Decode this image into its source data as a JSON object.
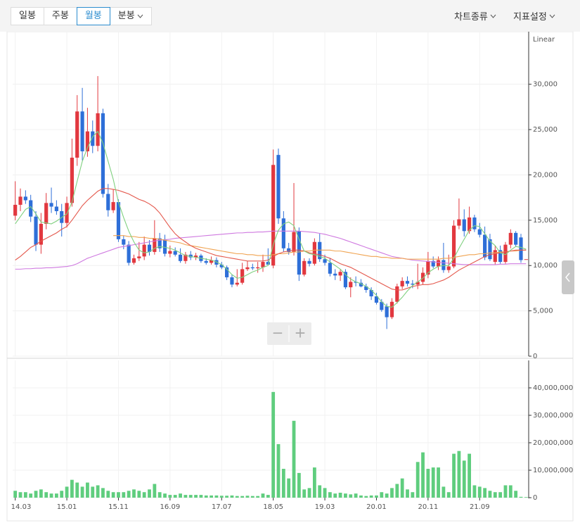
{
  "toolbar": {
    "periods": [
      "일봉",
      "주봉",
      "월봉",
      "분봉"
    ],
    "selected": 2,
    "menus": [
      "차트종류",
      "지표설정"
    ]
  },
  "controls": {
    "zoom": [
      "−",
      "+"
    ]
  },
  "chart_data": [
    {
      "type": "candlestick",
      "scale_label": "Linear",
      "up_color": "#e2383f",
      "down_color": "#2e6fd8",
      "grid": true,
      "ylim": [
        0,
        35800
      ],
      "yticks": [
        0,
        {
          "value": 5000,
          "label": "5,000"
        },
        {
          "value": 10000,
          "label": "10,000"
        },
        {
          "value": 15000,
          "label": "15,000"
        },
        {
          "value": 20000,
          "label": "20,000"
        },
        {
          "value": 25000,
          "label": "25,000"
        },
        {
          "value": 30000,
          "label": "30,000"
        }
      ],
      "open": [
        15500,
        16700,
        17600,
        17200,
        15400,
        12300,
        14600,
        16900,
        16500,
        16000,
        14700,
        16900,
        21900,
        27000,
        22600,
        24800,
        23200,
        26800,
        17900,
        16100,
        17000,
        12900,
        12300,
        10300,
        10800,
        11000,
        12300,
        11500,
        13000,
        12900,
        11300,
        11600,
        11200,
        10500,
        11200,
        10900,
        11100,
        10500,
        10300,
        10600,
        10100,
        9800,
        8700,
        7900,
        8100,
        9600,
        9800,
        9700,
        9800,
        10400,
        10000,
        22200,
        15200,
        11900,
        11500,
        13800,
        9000,
        10500,
        10200,
        12600,
        10700,
        10300,
        9100,
        8900,
        9300,
        7600,
        8200,
        8100,
        7700,
        7300,
        6600,
        6000,
        5500,
        4300,
        6000,
        7700,
        8300,
        8000,
        7900,
        8200,
        9000,
        10500,
        9900,
        10600,
        9500,
        9900,
        14400,
        15100,
        13800,
        15300,
        14000,
        13400,
        12900,
        10400,
        11700,
        10400,
        12300,
        13600,
        13100,
        10700
      ],
      "high": [
        19300,
        18500,
        18300,
        17800,
        16000,
        15800,
        18000,
        18600,
        17200,
        16800,
        17600,
        24000,
        28800,
        29600,
        27400,
        26000,
        30900,
        27300,
        19000,
        18400,
        17300,
        13300,
        12700,
        11200,
        12600,
        13200,
        12800,
        15000,
        13600,
        13400,
        12200,
        12000,
        11900,
        11500,
        11600,
        11400,
        11300,
        10800,
        11000,
        10900,
        10400,
        10000,
        9000,
        9600,
        10300,
        10500,
        10200,
        10400,
        11200,
        11900,
        22800,
        22900,
        16000,
        12500,
        19100,
        14200,
        10800,
        10800,
        13000,
        13500,
        11200,
        10800,
        9600,
        9600,
        9600,
        8700,
        8800,
        8500,
        8000,
        7600,
        7000,
        6300,
        5800,
        6400,
        8000,
        8700,
        8800,
        8400,
        10200,
        9800,
        11500,
        11000,
        11000,
        12500,
        11200,
        15000,
        17400,
        16200,
        16500,
        15600,
        14700,
        14300,
        13500,
        12200,
        12200,
        12600,
        14000,
        13800,
        13500,
        10700
      ],
      "low": [
        15000,
        16000,
        16800,
        14800,
        11600,
        11300,
        14000,
        15800,
        15600,
        13200,
        14200,
        16500,
        21000,
        21600,
        22000,
        22400,
        22600,
        17500,
        15400,
        15800,
        12600,
        11800,
        10000,
        10100,
        10500,
        10600,
        11100,
        11200,
        11500,
        11000,
        10900,
        11000,
        10300,
        10200,
        10600,
        10600,
        10300,
        10100,
        10100,
        9800,
        9600,
        8400,
        7600,
        7700,
        7900,
        9400,
        9500,
        9200,
        9300,
        10000,
        9700,
        14600,
        11500,
        11200,
        11100,
        8300,
        8800,
        9900,
        10000,
        10400,
        10000,
        8800,
        8400,
        8300,
        7400,
        6500,
        7700,
        7600,
        7000,
        6200,
        5700,
        4900,
        3000,
        4100,
        5800,
        7400,
        7700,
        7500,
        7400,
        7900,
        8600,
        9700,
        9500,
        9200,
        9200,
        9700,
        14000,
        13200,
        13500,
        13700,
        13100,
        10600,
        10500,
        10100,
        10200,
        10200,
        11900,
        12100,
        10300,
        10700
      ],
      "close": [
        16700,
        17600,
        17200,
        15400,
        12300,
        14600,
        16900,
        16500,
        16000,
        14700,
        16900,
        21900,
        27000,
        22600,
        24800,
        23200,
        26800,
        17900,
        16100,
        17000,
        12900,
        12300,
        10300,
        10800,
        11000,
        12300,
        11500,
        13000,
        11900,
        11300,
        11600,
        11200,
        10500,
        11200,
        10900,
        11100,
        10500,
        10300,
        10600,
        10100,
        9800,
        8700,
        7900,
        8100,
        9600,
        9800,
        9700,
        9800,
        10400,
        10100,
        21100,
        15200,
        11900,
        11500,
        13700,
        9000,
        10500,
        10200,
        12600,
        10700,
        10300,
        9100,
        8900,
        9300,
        7600,
        8200,
        8100,
        7700,
        7300,
        6600,
        5900,
        5100,
        4300,
        6000,
        7700,
        8300,
        8000,
        7900,
        8200,
        9200,
        10500,
        9900,
        10600,
        9500,
        9900,
        14400,
        15100,
        13800,
        15300,
        14000,
        13400,
        10900,
        10700,
        11700,
        10400,
        12300,
        13600,
        12300,
        10600,
        10700
      ],
      "lines": [
        {
          "color": "#cf79e0",
          "values": [
            9600,
            9600,
            9650,
            9650,
            9700,
            9700,
            9750,
            9750,
            9800,
            9850,
            9900,
            10000,
            10200,
            10500,
            10800,
            11000,
            11200,
            11400,
            11600,
            11800,
            12000,
            12100,
            12200,
            12300,
            12400,
            12500,
            12600,
            12700,
            12800,
            12850,
            12900,
            13000,
            13050,
            13100,
            13150,
            13200,
            13250,
            13300,
            13350,
            13400,
            13450,
            13500,
            13550,
            13600,
            13600,
            13650,
            13650,
            13700,
            13700,
            13750,
            13800,
            13800,
            13800,
            13800,
            13800,
            13800,
            13750,
            13700,
            13650,
            13550,
            13450,
            13300,
            13150,
            13000,
            12800,
            12600,
            12400,
            12200,
            12000,
            11800,
            11600,
            11400,
            11200,
            11000,
            10900,
            10800,
            10700,
            10600,
            10550,
            10500,
            10450,
            10400,
            10350,
            10300,
            10250,
            10200,
            10150,
            10100,
            10100,
            10100,
            10100,
            10100,
            10100,
            10100,
            10150,
            10150,
            10200,
            10200,
            10200,
            10200
          ]
        },
        {
          "color": "#f0a452",
          "values": [
            null,
            null,
            null,
            null,
            null,
            null,
            null,
            null,
            null,
            null,
            null,
            null,
            null,
            null,
            null,
            null,
            null,
            null,
            null,
            13300,
            13300,
            13300,
            13200,
            13200,
            13100,
            13100,
            13000,
            13000,
            12900,
            12800,
            12700,
            12600,
            12500,
            12300,
            12200,
            12100,
            12000,
            11900,
            11800,
            11700,
            11600,
            11500,
            11400,
            11300,
            11300,
            11200,
            11200,
            11100,
            11100,
            11100,
            11200,
            11300,
            11300,
            11400,
            11500,
            11500,
            11600,
            11600,
            11700,
            11700,
            11700,
            11700,
            11600,
            11600,
            11500,
            11400,
            11300,
            11200,
            11100,
            11000,
            11000,
            10900,
            10900,
            10800,
            10800,
            10800,
            10700,
            10700,
            10700,
            10700,
            10700,
            10700,
            10700,
            10800,
            10800,
            10900,
            11000,
            11100,
            11200,
            11200,
            11300,
            11300,
            11400,
            11400,
            11500,
            11500,
            11600,
            11600,
            11700,
            11700
          ]
        },
        {
          "color": "#e4584c",
          "values": [
            10600,
            11000,
            11500,
            12000,
            12300,
            12700,
            13000,
            13300,
            13600,
            14000,
            14300,
            15000,
            15800,
            16600,
            17200,
            17700,
            18200,
            18500,
            18500,
            18400,
            18300,
            18100,
            17900,
            17600,
            17300,
            17100,
            16800,
            16400,
            15800,
            15000,
            14200,
            13500,
            13000,
            12600,
            12200,
            11900,
            11700,
            11500,
            11300,
            11100,
            11000,
            10900,
            10800,
            10700,
            10600,
            10500,
            10500,
            10500,
            10500,
            10600,
            11000,
            11300,
            11500,
            11600,
            11700,
            11700,
            11600,
            11400,
            11300,
            11200,
            11000,
            10800,
            10500,
            10200,
            10000,
            9800,
            9500,
            9200,
            8900,
            8600,
            8300,
            8000,
            7700,
            7400,
            7300,
            7300,
            7500,
            7700,
            7800,
            7900,
            7900,
            8000,
            8200,
            8400,
            8700,
            9100,
            9500,
            9800,
            10100,
            10400,
            10700,
            11000,
            11200,
            11300,
            11400,
            11500,
            11600,
            11700,
            11700,
            11700
          ]
        },
        {
          "color": "#7fd07f",
          "values": [
            14600,
            15400,
            16200,
            16500,
            15700,
            14800,
            14700,
            14600,
            14900,
            15300,
            15700,
            17000,
            19300,
            21500,
            23000,
            24200,
            24800,
            23500,
            21500,
            19500,
            17000,
            15300,
            13800,
            12600,
            11700,
            11400,
            11500,
            11900,
            12100,
            12000,
            11900,
            11700,
            11400,
            11100,
            11000,
            10900,
            10800,
            10700,
            10600,
            10400,
            10100,
            9600,
            9000,
            8600,
            8700,
            9000,
            9300,
            9500,
            9800,
            10000,
            12300,
            13900,
            14600,
            14800,
            14400,
            12900,
            11600,
            11300,
            11200,
            11000,
            10800,
            10400,
            10000,
            9600,
            9000,
            8500,
            8200,
            8000,
            7700,
            7300,
            6700,
            6000,
            5500,
            5400,
            5900,
            6500,
            7200,
            7800,
            8200,
            8600,
            9200,
            9600,
            9900,
            10000,
            10000,
            10800,
            11900,
            12900,
            13900,
            14400,
            14300,
            13500,
            12700,
            12200,
            11400,
            11200,
            11700,
            12100,
            12000,
            11800
          ]
        }
      ]
    },
    {
      "type": "bar",
      "color": "#5fcd7e",
      "grid": true,
      "ylim": [
        0,
        50000000
      ],
      "yticks": [
        0,
        {
          "value": 10000000,
          "label": "10,000,000"
        },
        {
          "value": 20000000,
          "label": "20,000,000"
        },
        {
          "value": 30000000,
          "label": "30,000,000"
        },
        {
          "value": 40000000,
          "label": "40,000,000"
        }
      ],
      "categories": [
        "14.03",
        null,
        null,
        null,
        null,
        null,
        null,
        null,
        null,
        null,
        "15.01",
        null,
        null,
        null,
        null,
        null,
        null,
        null,
        null,
        null,
        "15.11",
        null,
        null,
        null,
        null,
        null,
        null,
        null,
        null,
        null,
        "16.09",
        null,
        null,
        null,
        null,
        null,
        null,
        null,
        null,
        null,
        "17.07",
        null,
        null,
        null,
        null,
        null,
        null,
        null,
        null,
        null,
        "18.05",
        null,
        null,
        null,
        null,
        null,
        null,
        null,
        null,
        null,
        "19.03",
        null,
        null,
        null,
        null,
        null,
        null,
        null,
        null,
        null,
        "20.01",
        null,
        null,
        null,
        null,
        null,
        null,
        null,
        null,
        null,
        "20.11",
        null,
        null,
        null,
        null,
        null,
        null,
        null,
        null,
        null,
        "21.09",
        null,
        null,
        null,
        null,
        null,
        null,
        null,
        null,
        null
      ],
      "values": [
        2500000,
        2000000,
        2000000,
        1500000,
        2500000,
        3000000,
        2000000,
        1500000,
        1500000,
        2500000,
        4000000,
        6500000,
        5500000,
        4000000,
        5500000,
        4000000,
        4500000,
        3500000,
        2500000,
        2000000,
        2000000,
        2000000,
        2500000,
        3000000,
        2500000,
        2000000,
        3000000,
        5000000,
        2000000,
        1500000,
        1000000,
        1000000,
        1500000,
        1000000,
        1000000,
        1000000,
        1000000,
        800000,
        800000,
        800000,
        700000,
        700000,
        800000,
        600000,
        600000,
        700000,
        600000,
        600000,
        1500000,
        1000000,
        38500000,
        19500000,
        10500000,
        7000000,
        28000000,
        9000000,
        3000000,
        3500000,
        11000000,
        4500000,
        3500000,
        2000000,
        1500000,
        1800000,
        1500000,
        1200000,
        1500000,
        800000,
        600000,
        800000,
        800000,
        2000000,
        1500000,
        3500000,
        5000000,
        7000000,
        3000000,
        2000000,
        13000000,
        16500000,
        10500000,
        11000000,
        11000000,
        4000000,
        2000000,
        16000000,
        17000000,
        13500000,
        16000000,
        4500000,
        4000000,
        3500000,
        2500000,
        2000000,
        2000000,
        4500000,
        4500000,
        2500000,
        300000,
        200000
      ]
    }
  ]
}
